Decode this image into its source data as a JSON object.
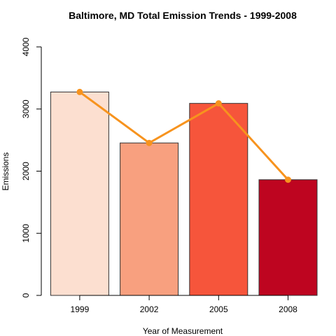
{
  "chart_data": {
    "type": "bar",
    "title": "Baltimore, MD Total Emission Trends - 1999-2008",
    "xlabel": "Year of Measurement",
    "ylabel": "Emissions",
    "categories": [
      "1999",
      "2002",
      "2005",
      "2008"
    ],
    "values": [
      3274,
      2454,
      3091,
      1862
    ],
    "bar_colors": [
      "#fcdfd0",
      "#f8a07f",
      "#f6553b",
      "#be0520"
    ],
    "line_overlay": {
      "values": [
        3274,
        2454,
        3091,
        1862
      ],
      "color": "#f7931e"
    },
    "ylim": [
      0,
      4000
    ],
    "y_ticks": [
      "0",
      "1000",
      "2000",
      "3000",
      "4000"
    ],
    "grid": false,
    "legend": "none"
  }
}
